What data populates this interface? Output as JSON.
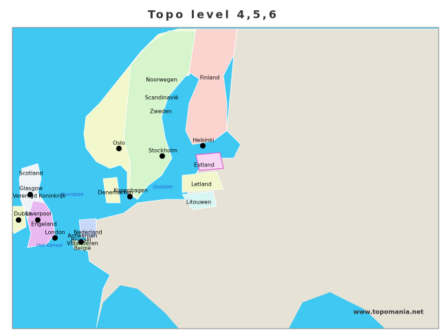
{
  "title": "Topo level 4,5,6",
  "labels": [
    {
      "text": "Noorwegen"
    },
    {
      "text": "Scandinavië"
    },
    {
      "text": "Zweden"
    },
    {
      "text": "Finland"
    },
    {
      "text": "Oslo"
    },
    {
      "text": "Stockholm"
    },
    {
      "text": "Helsinki"
    },
    {
      "text": "Estland"
    },
    {
      "text": "Letland"
    },
    {
      "text": "Litouwen"
    },
    {
      "text": "Denemarken"
    },
    {
      "text": "Kopenhagen"
    },
    {
      "text": "Oostzee"
    },
    {
      "text": "Noordzee"
    },
    {
      "text": "Scotland"
    },
    {
      "text": "Glasgow"
    },
    {
      "text": "Verenigd Koninkrijk"
    },
    {
      "text": "Dublin"
    },
    {
      "text": "Liverpool"
    },
    {
      "text": "Engeland"
    },
    {
      "text": "London"
    },
    {
      "text": "Nederland"
    },
    {
      "text": "Antwerpen"
    },
    {
      "text": "Brussel"
    },
    {
      "text": "Vlaanderen"
    },
    {
      "text": "België"
    },
    {
      "text": "Het Kanaal"
    }
  ],
  "footer": "www.topomania.net"
}
